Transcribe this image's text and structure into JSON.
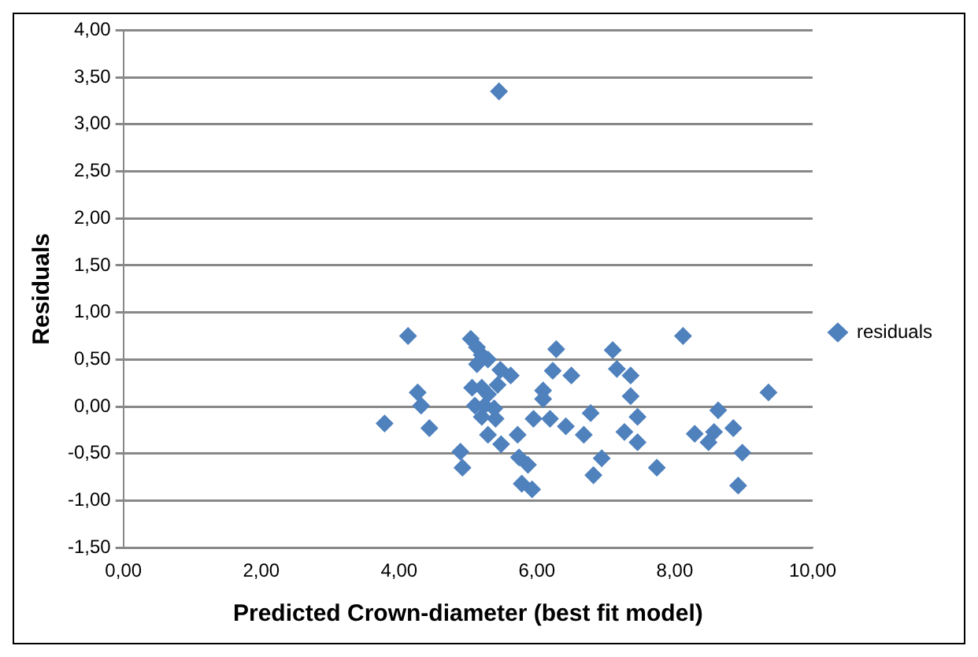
{
  "chart_data": {
    "type": "scatter",
    "xlabel": "Predicted Crown-diameter (best fit model)",
    "ylabel": "Residuals",
    "legend": "right",
    "grid": "y",
    "marker": "diamond",
    "xlim": [
      0,
      10
    ],
    "ylim": [
      -1.5,
      4
    ],
    "xticks": [
      {
        "value": 0,
        "label": "0,00"
      },
      {
        "value": 2,
        "label": "2,00"
      },
      {
        "value": 4,
        "label": "4,00"
      },
      {
        "value": 6,
        "label": "6,00"
      },
      {
        "value": 8,
        "label": "8,00"
      },
      {
        "value": 10,
        "label": "10,00"
      }
    ],
    "yticks": [
      {
        "value": -1.5,
        "label": "-1,50"
      },
      {
        "value": -1,
        "label": "-1,00"
      },
      {
        "value": -0.5,
        "label": "-0,50"
      },
      {
        "value": 0,
        "label": "0,00"
      },
      {
        "value": 0.5,
        "label": "0,50"
      },
      {
        "value": 1,
        "label": "1,00"
      },
      {
        "value": 1.5,
        "label": "1,50"
      },
      {
        "value": 2,
        "label": "2,00"
      },
      {
        "value": 2.5,
        "label": "2,50"
      },
      {
        "value": 3,
        "label": "3,00"
      },
      {
        "value": 3.5,
        "label": "3,50"
      },
      {
        "value": 4,
        "label": "4,00"
      }
    ],
    "series": [
      {
        "name": "residuals",
        "color": "#4f81bd",
        "x": [
          5.45,
          3.79,
          4.13,
          4.27,
          4.32,
          4.44,
          4.89,
          4.92,
          5.04,
          5.13,
          5.2,
          5.29,
          5.13,
          5.06,
          5.2,
          5.29,
          5.1,
          5.24,
          5.38,
          5.2,
          5.4,
          5.47,
          5.62,
          5.43,
          5.29,
          5.48,
          5.72,
          5.74,
          5.87,
          5.78,
          5.93,
          5.95,
          6.09,
          6.09,
          6.23,
          6.28,
          6.19,
          6.42,
          6.5,
          6.68,
          6.78,
          6.82,
          6.94,
          7.1,
          7.16,
          7.27,
          7.36,
          7.36,
          7.46,
          7.46,
          7.74,
          8.12,
          8.29,
          8.49,
          8.57,
          8.63,
          8.85,
          8.98,
          8.92,
          9.36
        ],
        "values": [
          3.35,
          -0.18,
          0.75,
          0.15,
          0.01,
          -0.23,
          -0.48,
          -0.65,
          0.72,
          0.63,
          0.55,
          0.5,
          0.45,
          0.2,
          0.2,
          0.13,
          0.01,
          0.01,
          -0.02,
          -0.11,
          -0.13,
          0.39,
          0.33,
          0.23,
          -0.3,
          -0.4,
          -0.3,
          -0.54,
          -0.62,
          -0.82,
          -0.88,
          -0.13,
          0.17,
          0.08,
          0.38,
          0.61,
          -0.13,
          -0.21,
          0.33,
          -0.3,
          -0.07,
          -0.73,
          -0.55,
          0.6,
          0.4,
          -0.27,
          0.33,
          0.11,
          -0.11,
          -0.38,
          -0.65,
          0.75,
          -0.29,
          -0.38,
          -0.27,
          -0.04,
          -0.23,
          -0.49,
          -0.84,
          0.15
        ]
      }
    ]
  }
}
